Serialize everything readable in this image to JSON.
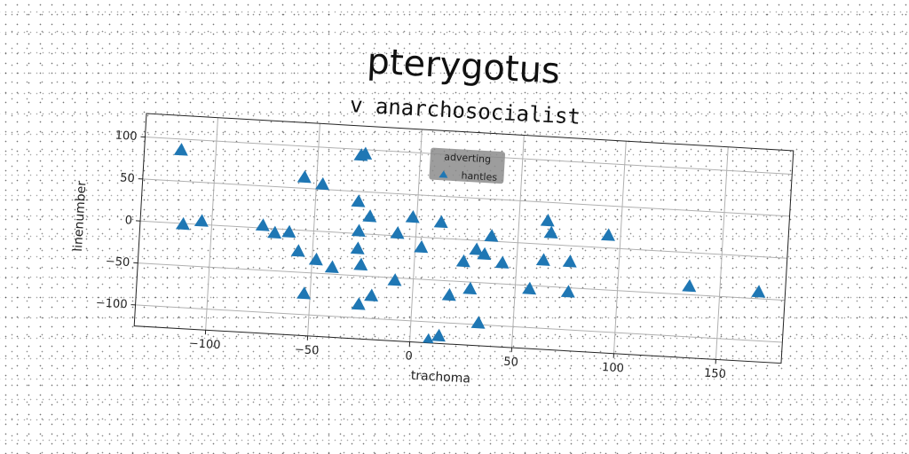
{
  "chart_data": {
    "type": "scatter",
    "title": "pterygotus",
    "subtitle": "v anarchosocialist",
    "xlabel": "trachoma",
    "ylabel": "linenumber",
    "xlim": [
      -135,
      182
    ],
    "ylim": [
      -125,
      128
    ],
    "xticks": [
      -100,
      -50,
      0,
      50,
      100,
      150
    ],
    "yticks": [
      -100,
      -50,
      0,
      50,
      100
    ],
    "grid": true,
    "legend": {
      "title": "adverting",
      "position": "top-center",
      "entries": [
        "hantles"
      ]
    },
    "series": [
      {
        "name": "hantles",
        "marker": "triangle",
        "color": "#1f77b4",
        "points": [
          [
            -117,
            86
          ],
          [
            -114,
            -2
          ],
          [
            -105,
            3
          ],
          [
            -75,
            2
          ],
          [
            -69,
            -6
          ],
          [
            -62,
            -4
          ],
          [
            -57,
            -26
          ],
          [
            -56,
            62
          ],
          [
            -53,
            -76
          ],
          [
            -48,
            -35
          ],
          [
            -47,
            55
          ],
          [
            -40,
            -43
          ],
          [
            -29,
            92
          ],
          [
            -27,
            94
          ],
          [
            -29,
            37
          ],
          [
            -28,
            2
          ],
          [
            -28,
            -19
          ],
          [
            -26,
            -38
          ],
          [
            -26,
            -85
          ],
          [
            -23,
            20
          ],
          [
            -20,
            -74
          ],
          [
            -9,
            2
          ],
          [
            -9,
            -54
          ],
          [
            -2,
            22
          ],
          [
            3,
            -13
          ],
          [
            12,
            18
          ],
          [
            9,
            -123
          ],
          [
            14,
            -117
          ],
          [
            18,
            -68
          ],
          [
            24,
            -27
          ],
          [
            28,
            -59
          ],
          [
            30,
            -12
          ],
          [
            34,
            -17
          ],
          [
            33,
            -99
          ],
          [
            37,
            5
          ],
          [
            43,
            -26
          ],
          [
            57,
            -55
          ],
          [
            63,
            -20
          ],
          [
            64,
            27
          ],
          [
            66,
            13
          ],
          [
            76,
            -20
          ],
          [
            76,
            -56
          ],
          [
            94,
            14
          ],
          [
            135,
            -41
          ],
          [
            169,
            -43
          ]
        ]
      }
    ]
  }
}
